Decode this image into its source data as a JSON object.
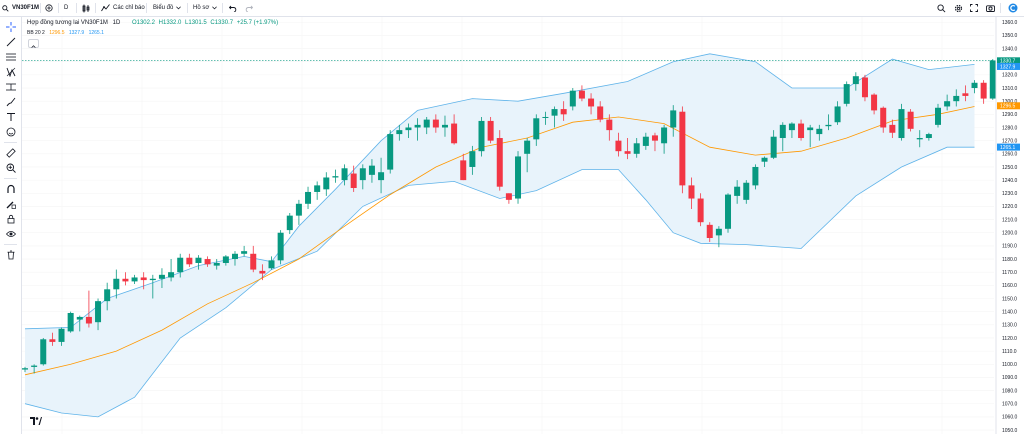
{
  "toolbar": {
    "symbol": "VN30F1M",
    "interval": "D",
    "indicators_label": "Các chỉ báo",
    "chart_label": "Biểu đồ",
    "profile_label": "Hồ sơ"
  },
  "legend": {
    "title": "Hợp đồng tương lai VN30F1M",
    "timeframe": "1D",
    "open": "O1302.2",
    "high": "H1332.0",
    "low": "L1301.5",
    "close": "C1330.7",
    "change": "+25.7 (+1.97%)",
    "bb_name": "BB 20 2",
    "bb_basis": "1296.5",
    "bb_upper": "1327.9",
    "bb_lower": "1265.1"
  },
  "price_labels": {
    "last": "1330.7",
    "upper": "1327.9",
    "basis": "1296.5",
    "lower": "1265.1"
  },
  "colors": {
    "up": "#089981",
    "down": "#f23645",
    "basis": "#ff9800",
    "band": "#2196f3",
    "band_fill": "#e8f3fb"
  },
  "chart_data": {
    "type": "candlestick",
    "y_axis_ticks": [
      1360.0,
      1350.0,
      1340.0,
      1330.0,
      1320.0,
      1310.0,
      1300.0,
      1290.0,
      1280.0,
      1270.0,
      1260.0,
      1250.0,
      1240.0,
      1230.0,
      1220.0,
      1210.0,
      1200.0,
      1190.0,
      1180.0,
      1170.0,
      1160.0,
      1150.0,
      1140.0,
      1130.0,
      1120.0,
      1110.0,
      1100.0,
      1090.0,
      1080.0,
      1070.0,
      1060.0,
      1050.0
    ],
    "ylim": [
      1047,
      1364
    ],
    "candles": [
      [
        1096,
        1098,
        1094,
        1097
      ],
      [
        1098,
        1100,
        1093,
        1099
      ],
      [
        1100,
        1120,
        1099,
        1119
      ],
      [
        1119,
        1124,
        1114,
        1117
      ],
      [
        1117,
        1128,
        1114,
        1127
      ],
      [
        1125,
        1140,
        1124,
        1139
      ],
      [
        1134,
        1137,
        1125,
        1136
      ],
      [
        1136,
        1156,
        1128,
        1131
      ],
      [
        1132,
        1150,
        1126,
        1148
      ],
      [
        1148,
        1162,
        1141,
        1157
      ],
      [
        1157,
        1172,
        1150,
        1165
      ],
      [
        1165,
        1170,
        1160,
        1163
      ],
      [
        1163,
        1168,
        1161,
        1166
      ],
      [
        1166,
        1170,
        1157,
        1164
      ],
      [
        1164,
        1168,
        1150,
        1165
      ],
      [
        1165,
        1173,
        1158,
        1168
      ],
      [
        1166,
        1180,
        1163,
        1170
      ],
      [
        1170,
        1184,
        1166,
        1181
      ],
      [
        1181,
        1184,
        1174,
        1176
      ],
      [
        1177,
        1183,
        1172,
        1181
      ],
      [
        1180,
        1182,
        1174,
        1176
      ],
      [
        1175,
        1180,
        1172,
        1177
      ],
      [
        1177,
        1183,
        1175,
        1182
      ],
      [
        1180,
        1186,
        1175,
        1184
      ],
      [
        1184,
        1190,
        1182,
        1186
      ],
      [
        1184,
        1190,
        1170,
        1172
      ],
      [
        1171,
        1176,
        1164,
        1169
      ],
      [
        1173,
        1182,
        1172,
        1179
      ],
      [
        1179,
        1202,
        1176,
        1200
      ],
      [
        1202,
        1215,
        1199,
        1213
      ],
      [
        1213,
        1225,
        1206,
        1222
      ],
      [
        1222,
        1235,
        1218,
        1231
      ],
      [
        1231,
        1239,
        1225,
        1236
      ],
      [
        1233,
        1246,
        1228,
        1242
      ],
      [
        1242,
        1248,
        1238,
        1243
      ],
      [
        1240,
        1252,
        1236,
        1249
      ],
      [
        1245,
        1251,
        1231,
        1234
      ],
      [
        1240,
        1252,
        1233,
        1249
      ],
      [
        1244,
        1256,
        1238,
        1251
      ],
      [
        1240,
        1257,
        1230,
        1246
      ],
      [
        1248,
        1278,
        1245,
        1275
      ],
      [
        1275,
        1282,
        1270,
        1278
      ],
      [
        1278,
        1283,
        1272,
        1280
      ],
      [
        1280,
        1287,
        1270,
        1282
      ],
      [
        1280,
        1288,
        1275,
        1286
      ],
      [
        1286,
        1290,
        1276,
        1280
      ],
      [
        1280,
        1289,
        1273,
        1282
      ],
      [
        1283,
        1290,
        1267,
        1268
      ],
      [
        1255,
        1260,
        1240,
        1240
      ],
      [
        1250,
        1266,
        1244,
        1262
      ],
      [
        1262,
        1288,
        1258,
        1285
      ],
      [
        1285,
        1288,
        1268,
        1270
      ],
      [
        1272,
        1278,
        1232,
        1235
      ],
      [
        1230,
        1230,
        1222,
        1225
      ],
      [
        1226,
        1262,
        1222,
        1258
      ],
      [
        1260,
        1272,
        1246,
        1270
      ],
      [
        1271,
        1290,
        1266,
        1287
      ],
      [
        1288,
        1292,
        1282,
        1288
      ],
      [
        1289,
        1296,
        1280,
        1294
      ],
      [
        1294,
        1300,
        1285,
        1290
      ],
      [
        1296,
        1310,
        1293,
        1308
      ],
      [
        1308,
        1312,
        1300,
        1302
      ],
      [
        1302,
        1306,
        1290,
        1296
      ],
      [
        1296,
        1300,
        1284,
        1286
      ],
      [
        1286,
        1290,
        1270,
        1278
      ],
      [
        1270,
        1276,
        1258,
        1262
      ],
      [
        1262,
        1272,
        1256,
        1260
      ],
      [
        1260,
        1272,
        1257,
        1268
      ],
      [
        1266,
        1276,
        1263,
        1273
      ],
      [
        1274,
        1276,
        1262,
        1270
      ],
      [
        1268,
        1282,
        1260,
        1280
      ],
      [
        1280,
        1297,
        1273,
        1293
      ],
      [
        1292,
        1296,
        1230,
        1236
      ],
      [
        1236,
        1242,
        1218,
        1226
      ],
      [
        1226,
        1230,
        1205,
        1208
      ],
      [
        1206,
        1208,
        1193,
        1196
      ],
      [
        1198,
        1205,
        1189,
        1203
      ],
      [
        1203,
        1230,
        1200,
        1229
      ],
      [
        1228,
        1240,
        1222,
        1235
      ],
      [
        1225,
        1240,
        1222,
        1238
      ],
      [
        1236,
        1252,
        1233,
        1250
      ],
      [
        1254,
        1258,
        1250,
        1257
      ],
      [
        1257,
        1278,
        1256,
        1273
      ],
      [
        1272,
        1284,
        1262,
        1282
      ],
      [
        1278,
        1284,
        1272,
        1283
      ],
      [
        1283,
        1286,
        1270,
        1272
      ],
      [
        1278,
        1282,
        1265,
        1280
      ],
      [
        1275,
        1282,
        1270,
        1279
      ],
      [
        1281,
        1290,
        1278,
        1282
      ],
      [
        1284,
        1300,
        1282,
        1296
      ],
      [
        1298,
        1315,
        1296,
        1313
      ],
      [
        1313,
        1322,
        1308,
        1319
      ],
      [
        1318,
        1320,
        1300,
        1303
      ],
      [
        1305,
        1306,
        1290,
        1293
      ],
      [
        1295,
        1296,
        1276,
        1280
      ],
      [
        1282,
        1286,
        1272,
        1276
      ],
      [
        1272,
        1298,
        1270,
        1294
      ],
      [
        1292,
        1294,
        1277,
        1279
      ],
      [
        1271,
        1278,
        1265,
        1272
      ],
      [
        1272,
        1276,
        1270,
        1275
      ],
      [
        1282,
        1298,
        1280,
        1295
      ],
      [
        1296,
        1305,
        1293,
        1300
      ],
      [
        1300,
        1309,
        1296,
        1304
      ],
      [
        1306,
        1312,
        1300,
        1304
      ],
      [
        1310,
        1316,
        1306,
        1314
      ],
      [
        1314,
        1316,
        1298,
        1302
      ],
      [
        1302,
        1332,
        1301,
        1331
      ]
    ],
    "bollinger": {
      "upper": [
        [
          0,
          1127
        ],
        [
          5,
          1128
        ],
        [
          9,
          1150
        ],
        [
          14,
          1162
        ],
        [
          19,
          1175
        ],
        [
          24,
          1182
        ],
        [
          27,
          1178
        ],
        [
          30,
          1205
        ],
        [
          34,
          1233
        ],
        [
          39,
          1270
        ],
        [
          43,
          1293
        ],
        [
          49,
          1302
        ],
        [
          54,
          1300
        ],
        [
          59,
          1306
        ],
        [
          66,
          1315
        ],
        [
          71,
          1330
        ],
        [
          75,
          1336
        ],
        [
          80,
          1330
        ],
        [
          84,
          1310
        ],
        [
          90,
          1310
        ],
        [
          95,
          1332
        ],
        [
          99,
          1324
        ],
        [
          104,
          1328
        ]
      ],
      "basis": [
        [
          0,
          1092
        ],
        [
          5,
          1100
        ],
        [
          10,
          1110
        ],
        [
          15,
          1126
        ],
        [
          20,
          1146
        ],
        [
          25,
          1162
        ],
        [
          30,
          1180
        ],
        [
          35,
          1205
        ],
        [
          40,
          1229
        ],
        [
          45,
          1250
        ],
        [
          50,
          1265
        ],
        [
          55,
          1272
        ],
        [
          60,
          1284
        ],
        [
          65,
          1288
        ],
        [
          70,
          1283
        ],
        [
          75,
          1265
        ],
        [
          80,
          1259
        ],
        [
          85,
          1262
        ],
        [
          90,
          1272
        ],
        [
          95,
          1285
        ],
        [
          100,
          1290
        ],
        [
          104,
          1296
        ]
      ],
      "lower": [
        [
          0,
          1070
        ],
        [
          4,
          1063
        ],
        [
          8,
          1060
        ],
        [
          12,
          1075
        ],
        [
          17,
          1120
        ],
        [
          22,
          1143
        ],
        [
          27,
          1172
        ],
        [
          32,
          1186
        ],
        [
          37,
          1220
        ],
        [
          42,
          1236
        ],
        [
          47,
          1239
        ],
        [
          52,
          1226
        ],
        [
          56,
          1232
        ],
        [
          61,
          1248
        ],
        [
          65,
          1248
        ],
        [
          68,
          1225
        ],
        [
          71,
          1200
        ],
        [
          74,
          1192
        ],
        [
          79,
          1191
        ],
        [
          85,
          1188
        ],
        [
          91,
          1228
        ],
        [
          96,
          1250
        ],
        [
          101,
          1265
        ],
        [
          104,
          1265
        ]
      ]
    }
  }
}
